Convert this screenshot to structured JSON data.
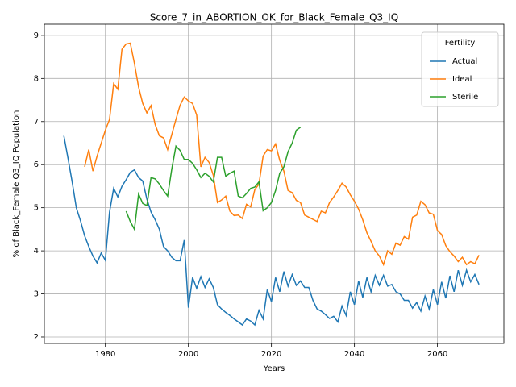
{
  "chart_data": {
    "type": "line",
    "title": "Score_7_in_ABORTION_OK_for_Black_Female_Q3_IQ",
    "xlabel": "Years",
    "ylabel": "% of Black_Female Q3_IQ Population",
    "legend_title": "Fertility",
    "legend": "upper right",
    "grid": true,
    "xlim": [
      1965.3,
      2076
    ],
    "ylim": [
      1.85,
      9.26
    ],
    "xticks": [
      1980,
      2000,
      2020,
      2040,
      2060
    ],
    "yticks": [
      2,
      3,
      4,
      5,
      6,
      7,
      8,
      9
    ],
    "x": [
      1970,
      1971,
      1972,
      1973,
      1974,
      1975,
      1976,
      1977,
      1978,
      1979,
      1980,
      1981,
      1982,
      1983,
      1984,
      1985,
      1986,
      1987,
      1988,
      1989,
      1990,
      1991,
      1992,
      1993,
      1994,
      1995,
      1996,
      1997,
      1998,
      1999,
      2000,
      2001,
      2002,
      2003,
      2004,
      2005,
      2006,
      2007,
      2008,
      2009,
      2010,
      2011,
      2012,
      2013,
      2014,
      2015,
      2016,
      2017,
      2018,
      2019,
      2020,
      2021,
      2022,
      2023,
      2024,
      2025,
      2026,
      2027,
      2028,
      2029,
      2030,
      2031,
      2032,
      2033,
      2034,
      2035,
      2036,
      2037,
      2038,
      2039,
      2040,
      2041,
      2042,
      2043,
      2044,
      2045,
      2046,
      2047,
      2048,
      2049,
      2050,
      2051,
      2052,
      2053,
      2054,
      2055,
      2056,
      2057,
      2058,
      2059,
      2060,
      2061,
      2062,
      2063,
      2064,
      2065,
      2066,
      2067,
      2068,
      2069,
      2070
    ],
    "series": [
      {
        "name": "Actual",
        "color": "#1f77b4",
        "values": [
          6.67,
          6.15,
          5.6,
          5.0,
          4.7,
          4.35,
          4.1,
          3.88,
          3.72,
          3.95,
          3.78,
          4.9,
          5.45,
          5.25,
          5.5,
          5.65,
          5.82,
          5.88,
          5.7,
          5.62,
          5.2,
          4.9,
          4.72,
          4.5,
          4.1,
          4.0,
          3.85,
          3.77,
          3.77,
          4.25,
          2.68,
          3.38,
          3.13,
          3.4,
          3.15,
          3.35,
          3.15,
          2.75,
          2.65,
          2.57,
          2.5,
          2.42,
          2.35,
          2.28,
          2.42,
          2.37,
          2.28,
          2.62,
          2.42,
          3.1,
          2.82,
          3.38,
          3.05,
          3.52,
          3.18,
          3.45,
          3.2,
          3.3,
          3.15,
          3.15,
          2.85,
          2.65,
          2.6,
          2.52,
          2.43,
          2.48,
          2.35,
          2.72,
          2.5,
          3.05,
          2.75,
          3.3,
          2.92,
          3.38,
          3.05,
          3.43,
          3.2,
          3.43,
          3.18,
          3.22,
          3.05,
          3.0,
          2.85,
          2.85,
          2.67,
          2.8,
          2.6,
          2.95,
          2.65,
          3.1,
          2.75,
          3.28,
          2.9,
          3.42,
          3.05,
          3.55,
          3.2,
          3.55,
          3.28,
          3.45,
          3.22
        ]
      },
      {
        "name": "Ideal",
        "color": "#ff7f0e",
        "values": [
          null,
          null,
          null,
          null,
          null,
          5.95,
          6.35,
          5.85,
          6.2,
          6.5,
          6.8,
          7.05,
          7.88,
          7.75,
          8.68,
          8.8,
          8.82,
          8.35,
          7.8,
          7.42,
          7.2,
          7.37,
          6.93,
          6.67,
          6.62,
          6.35,
          6.7,
          7.05,
          7.38,
          7.57,
          7.48,
          7.42,
          7.15,
          5.95,
          6.17,
          6.05,
          5.75,
          5.12,
          5.18,
          5.27,
          4.92,
          4.82,
          4.83,
          4.75,
          5.08,
          5.02,
          5.42,
          5.55,
          6.2,
          6.35,
          6.32,
          6.48,
          6.1,
          5.85,
          5.4,
          5.35,
          5.17,
          5.12,
          4.83,
          4.78,
          4.73,
          4.68,
          4.92,
          4.88,
          5.12,
          5.25,
          5.4,
          5.57,
          5.48,
          5.3,
          5.15,
          4.97,
          4.72,
          4.42,
          4.22,
          4.0,
          3.88,
          3.68,
          4.0,
          3.92,
          4.18,
          4.13,
          4.33,
          4.27,
          4.78,
          4.83,
          5.15,
          5.07,
          4.88,
          4.85,
          4.47,
          4.38,
          4.12,
          3.98,
          3.88,
          3.75,
          3.85,
          3.68,
          3.75,
          3.7,
          3.9
        ]
      },
      {
        "name": "Sterile",
        "color": "#2ca02c",
        "values": [
          null,
          null,
          null,
          null,
          null,
          null,
          null,
          null,
          null,
          null,
          null,
          null,
          null,
          null,
          null,
          4.92,
          4.68,
          4.5,
          5.32,
          5.1,
          5.05,
          5.7,
          5.67,
          5.55,
          5.4,
          5.27,
          5.9,
          6.43,
          6.33,
          6.12,
          6.12,
          6.03,
          5.88,
          5.7,
          5.8,
          5.73,
          5.6,
          6.17,
          6.17,
          5.73,
          5.8,
          5.85,
          5.27,
          5.23,
          5.33,
          5.45,
          5.48,
          5.6,
          4.93,
          5.0,
          5.12,
          5.4,
          5.8,
          5.95,
          6.3,
          6.5,
          6.8,
          6.87,
          null,
          null,
          null,
          null,
          null,
          null,
          null,
          null,
          null,
          null,
          null,
          null,
          null,
          null,
          null,
          null,
          null,
          null,
          null,
          null,
          null,
          null,
          null,
          null,
          null,
          null,
          null,
          null,
          null,
          null,
          null,
          null,
          null,
          null,
          null,
          null,
          null,
          null,
          null,
          null,
          null,
          null,
          null
        ]
      }
    ]
  }
}
